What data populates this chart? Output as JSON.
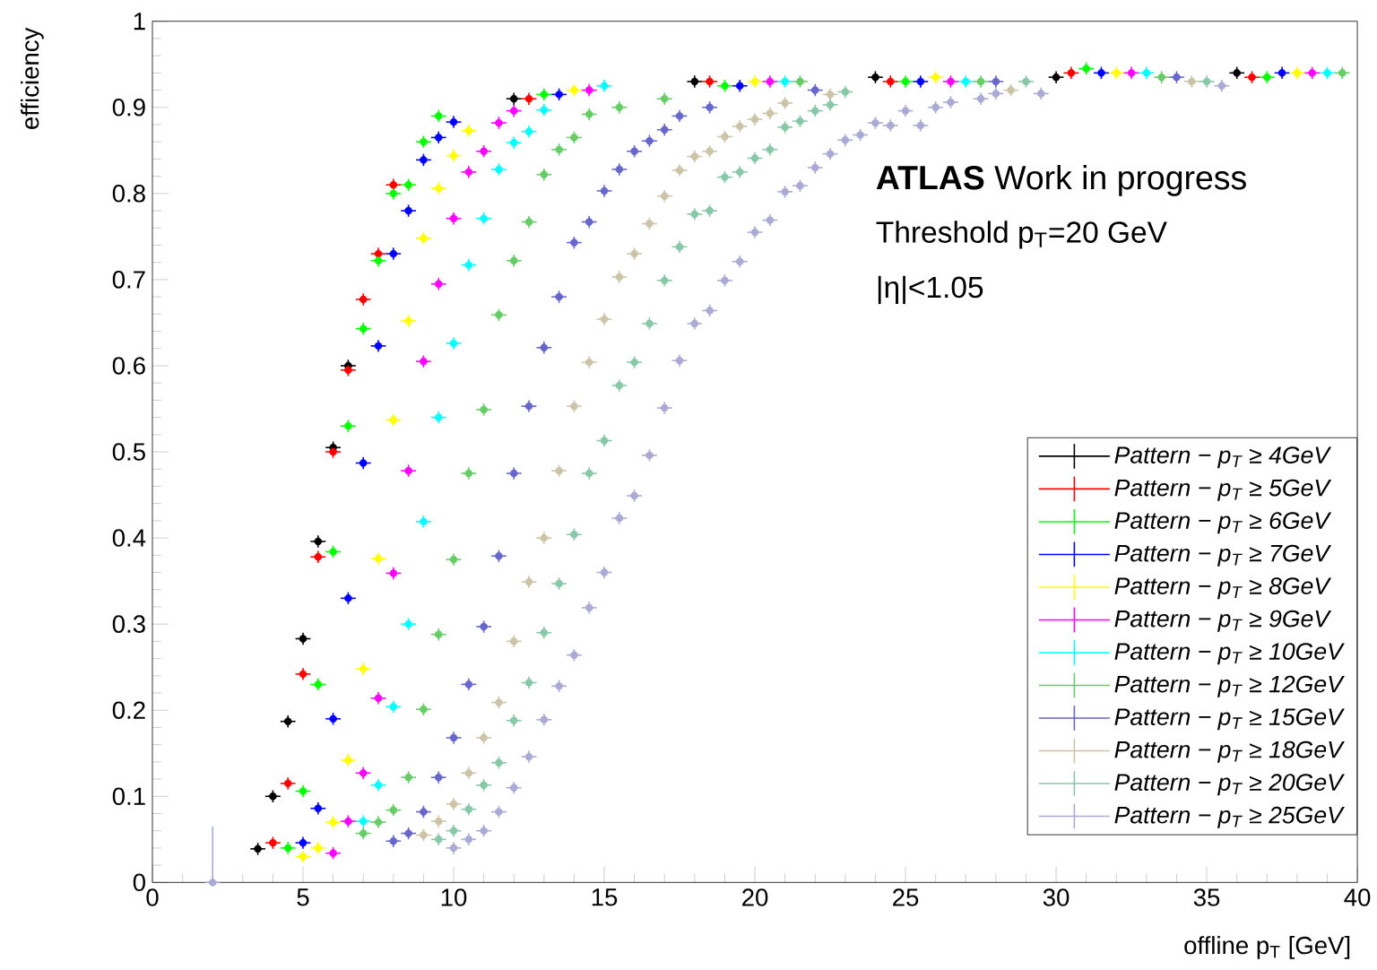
{
  "chart_data": {
    "type": "scatter",
    "xlabel": "offline p$_{T}$ [GeV]",
    "ylabel": "efficiency",
    "annotations": [
      "**ATLAS** Work in progress",
      "Threshold p$_{T}$=20 GeV",
      "|η|<1.05"
    ],
    "xlim": [
      0,
      40
    ],
    "ylim": [
      0,
      1
    ],
    "xticks": [
      0,
      5,
      10,
      15,
      20,
      25,
      30,
      35,
      40
    ],
    "yticks": [
      0,
      0.1,
      0.2,
      0.3,
      0.4,
      0.5,
      0.6,
      0.7,
      0.8,
      0.9,
      1
    ],
    "legend": "bottom right",
    "series": [
      {
        "name": "Pattern − p$_{T}$ ≥ 4GeV",
        "color": "#000000",
        "x": [
          3.5,
          4,
          4.5,
          5,
          5.5,
          6,
          6.5,
          12,
          18,
          24,
          30,
          36
        ],
        "values": [
          0.039,
          0.1,
          0.187,
          0.283,
          0.396,
          0.505,
          0.6,
          0.91,
          0.93,
          0.935,
          0.935,
          0.94
        ],
        "errors": [
          0.007,
          0.007,
          0.007,
          0.007,
          0.007,
          0.007,
          0.007,
          0.007,
          0.007,
          0.007,
          0.007,
          0.007
        ],
        "xerrors": [
          0.25,
          0.25,
          0.25,
          0.25,
          0.25,
          0.25,
          0.25,
          0.25,
          0.25,
          0.25,
          0.25,
          0.25
        ]
      },
      {
        "name": "Pattern − p$_{T}$ ≥ 5GeV",
        "color": "#ff0000",
        "x": [
          4,
          4.5,
          5,
          5.5,
          6,
          6.5,
          7,
          7.5,
          8,
          12.5,
          18.5,
          24.5,
          30.5,
          36.5
        ],
        "values": [
          0.046,
          0.115,
          0.242,
          0.378,
          0.5,
          0.595,
          0.677,
          0.73,
          0.81,
          0.91,
          0.93,
          0.93,
          0.94,
          0.935
        ],
        "errors": [
          0.007,
          0.007,
          0.007,
          0.007,
          0.007,
          0.007,
          0.007,
          0.007,
          0.007,
          0.007,
          0.007,
          0.007,
          0.007,
          0.007
        ],
        "xerrors": [
          0.25,
          0.25,
          0.25,
          0.25,
          0.25,
          0.25,
          0.25,
          0.25,
          0.25,
          0.25,
          0.25,
          0.25,
          0.25,
          0.25
        ]
      },
      {
        "name": "Pattern − p$_{T}$ ≥ 6GeV",
        "color": "#00ff00",
        "x": [
          4.5,
          5,
          5.5,
          6,
          6.5,
          7,
          7.5,
          8,
          8.5,
          9,
          9.5,
          13,
          19,
          25,
          31,
          37
        ],
        "values": [
          0.04,
          0.106,
          0.23,
          0.384,
          0.53,
          0.643,
          0.722,
          0.8,
          0.81,
          0.86,
          0.89,
          0.915,
          0.925,
          0.93,
          0.945,
          0.935
        ],
        "errors": [
          0.007,
          0.007,
          0.007,
          0.007,
          0.007,
          0.007,
          0.007,
          0.007,
          0.007,
          0.007,
          0.007,
          0.007,
          0.007,
          0.007,
          0.007,
          0.007
        ],
        "xerrors": [
          0.25,
          0.25,
          0.25,
          0.25,
          0.25,
          0.25,
          0.25,
          0.25,
          0.25,
          0.25,
          0.25,
          0.25,
          0.25,
          0.25,
          0.25,
          0.25
        ]
      },
      {
        "name": "Pattern − p$_{T}$ ≥ 7GeV",
        "color": "#0000ff",
        "x": [
          5,
          5.5,
          6,
          6.5,
          7,
          7.5,
          8,
          8.5,
          9,
          9.5,
          10,
          13.5,
          19.5,
          25.5,
          31.5,
          37.5
        ],
        "values": [
          0.046,
          0.086,
          0.19,
          0.33,
          0.487,
          0.623,
          0.73,
          0.78,
          0.839,
          0.865,
          0.883,
          0.915,
          0.925,
          0.93,
          0.94,
          0.94
        ],
        "errors": [
          0.007,
          0.007,
          0.007,
          0.007,
          0.007,
          0.007,
          0.007,
          0.007,
          0.007,
          0.007,
          0.007,
          0.007,
          0.007,
          0.007,
          0.007,
          0.007
        ],
        "xerrors": [
          0.25,
          0.25,
          0.25,
          0.25,
          0.25,
          0.25,
          0.25,
          0.25,
          0.25,
          0.25,
          0.25,
          0.25,
          0.25,
          0.25,
          0.25,
          0.25
        ]
      },
      {
        "name": "Pattern − p$_{T}$ ≥ 8GeV",
        "color": "#ffff00",
        "x": [
          5,
          5.5,
          6,
          6.5,
          7,
          7.5,
          8,
          8.5,
          9,
          9.5,
          10,
          10.5,
          14,
          20,
          26,
          32,
          38
        ],
        "values": [
          0.03,
          0.04,
          0.07,
          0.142,
          0.248,
          0.376,
          0.537,
          0.652,
          0.748,
          0.806,
          0.844,
          0.873,
          0.92,
          0.93,
          0.935,
          0.94,
          0.94
        ],
        "errors": [
          0.007,
          0.007,
          0.007,
          0.007,
          0.007,
          0.007,
          0.007,
          0.007,
          0.007,
          0.007,
          0.007,
          0.007,
          0.007,
          0.007,
          0.007,
          0.007,
          0.007
        ],
        "xerrors": [
          0.25,
          0.25,
          0.25,
          0.25,
          0.25,
          0.25,
          0.25,
          0.25,
          0.25,
          0.25,
          0.25,
          0.25,
          0.25,
          0.25,
          0.25,
          0.25,
          0.25
        ]
      },
      {
        "name": "Pattern − p$_{T}$ ≥ 9GeV",
        "color": "#ff00ff",
        "x": [
          6,
          6.5,
          7,
          7.5,
          8,
          8.5,
          9,
          9.5,
          10,
          10.5,
          11,
          11.5,
          12,
          14.5,
          20.5,
          26.5,
          32.5,
          38.5
        ],
        "values": [
          0.034,
          0.071,
          0.127,
          0.214,
          0.359,
          0.478,
          0.605,
          0.695,
          0.771,
          0.825,
          0.849,
          0.882,
          0.896,
          0.92,
          0.93,
          0.93,
          0.94,
          0.94
        ],
        "errors": [
          0.007,
          0.007,
          0.007,
          0.007,
          0.007,
          0.007,
          0.007,
          0.007,
          0.007,
          0.007,
          0.007,
          0.007,
          0.007,
          0.007,
          0.007,
          0.007,
          0.007,
          0.007
        ],
        "xerrors": [
          0.25,
          0.25,
          0.25,
          0.25,
          0.25,
          0.25,
          0.25,
          0.25,
          0.25,
          0.25,
          0.25,
          0.25,
          0.25,
          0.25,
          0.25,
          0.25,
          0.25,
          0.25
        ]
      },
      {
        "name": "Pattern − p$_{T}$ ≥ 10GeV",
        "color": "#00ffff",
        "x": [
          7,
          7.5,
          8,
          8.5,
          9,
          9.5,
          10,
          10.5,
          11,
          11.5,
          12,
          12.5,
          13,
          15,
          21,
          27,
          33,
          39
        ],
        "values": [
          0.071,
          0.113,
          0.204,
          0.3,
          0.419,
          0.54,
          0.626,
          0.717,
          0.771,
          0.828,
          0.859,
          0.872,
          0.897,
          0.925,
          0.93,
          0.93,
          0.94,
          0.94
        ],
        "errors": [
          0.007,
          0.007,
          0.007,
          0.007,
          0.007,
          0.007,
          0.007,
          0.007,
          0.007,
          0.007,
          0.007,
          0.007,
          0.007,
          0.007,
          0.007,
          0.007,
          0.007,
          0.007
        ],
        "xerrors": [
          0.25,
          0.25,
          0.25,
          0.25,
          0.25,
          0.25,
          0.25,
          0.25,
          0.25,
          0.25,
          0.25,
          0.25,
          0.25,
          0.25,
          0.25,
          0.25,
          0.25,
          0.25
        ]
      },
      {
        "name": "Pattern − p$_{T}$ ≥ 12GeV",
        "color": "#66cc66",
        "x": [
          7,
          7.5,
          8,
          8.5,
          9,
          9.5,
          10,
          10.5,
          11,
          11.5,
          12,
          12.5,
          13,
          13.5,
          14,
          14.5,
          15.5,
          17,
          21.5,
          27.5,
          33.5,
          39.5
        ],
        "values": [
          0.057,
          0.07,
          0.084,
          0.122,
          0.201,
          0.288,
          0.375,
          0.475,
          0.549,
          0.659,
          0.722,
          0.767,
          0.822,
          0.851,
          0.865,
          0.892,
          0.9,
          0.91,
          0.93,
          0.93,
          0.935,
          0.94
        ],
        "errors": [
          0.007,
          0.007,
          0.007,
          0.007,
          0.007,
          0.007,
          0.007,
          0.007,
          0.007,
          0.007,
          0.007,
          0.007,
          0.007,
          0.007,
          0.007,
          0.007,
          0.007,
          0.007,
          0.007,
          0.007,
          0.007,
          0.007
        ],
        "xerrors": [
          0.25,
          0.25,
          0.25,
          0.25,
          0.25,
          0.25,
          0.25,
          0.25,
          0.25,
          0.25,
          0.25,
          0.25,
          0.25,
          0.25,
          0.25,
          0.25,
          0.25,
          0.25,
          0.25,
          0.25,
          0.25,
          0.25
        ]
      },
      {
        "name": "Pattern − p$_{T}$ ≥ 15GeV",
        "color": "#6666cc",
        "x": [
          8,
          8.5,
          9,
          9.5,
          10,
          10.5,
          11,
          11.5,
          12,
          12.5,
          13,
          13.5,
          14,
          14.5,
          15,
          15.5,
          16,
          16.5,
          17,
          17.5,
          18.5,
          22,
          28,
          34
        ],
        "values": [
          0.048,
          0.057,
          0.082,
          0.122,
          0.168,
          0.23,
          0.297,
          0.379,
          0.475,
          0.553,
          0.621,
          0.68,
          0.743,
          0.767,
          0.803,
          0.828,
          0.849,
          0.861,
          0.874,
          0.89,
          0.9,
          0.92,
          0.93,
          0.935
        ],
        "errors": [
          0.007,
          0.007,
          0.007,
          0.007,
          0.007,
          0.007,
          0.007,
          0.007,
          0.007,
          0.007,
          0.007,
          0.007,
          0.007,
          0.007,
          0.007,
          0.007,
          0.007,
          0.007,
          0.007,
          0.007,
          0.007,
          0.007,
          0.007,
          0.007
        ],
        "xerrors": [
          0.25,
          0.25,
          0.25,
          0.25,
          0.25,
          0.25,
          0.25,
          0.25,
          0.25,
          0.25,
          0.25,
          0.25,
          0.25,
          0.25,
          0.25,
          0.25,
          0.25,
          0.25,
          0.25,
          0.25,
          0.25,
          0.25,
          0.25,
          0.25
        ]
      },
      {
        "name": "Pattern − p$_{T}$ ≥ 18GeV",
        "color": "#ccc4a8",
        "x": [
          9,
          9.5,
          10,
          10.5,
          11,
          11.5,
          12,
          12.5,
          13,
          13.5,
          14,
          14.5,
          15,
          15.5,
          16,
          16.5,
          17,
          17.5,
          18,
          18.5,
          19,
          19.5,
          20,
          20.5,
          21,
          22.5,
          28.5,
          34.5
        ],
        "values": [
          0.055,
          0.071,
          0.091,
          0.127,
          0.168,
          0.209,
          0.28,
          0.349,
          0.4,
          0.478,
          0.553,
          0.604,
          0.654,
          0.703,
          0.73,
          0.765,
          0.797,
          0.827,
          0.843,
          0.849,
          0.866,
          0.878,
          0.886,
          0.893,
          0.905,
          0.915,
          0.92,
          0.93
        ],
        "errors": [
          0.007,
          0.007,
          0.007,
          0.007,
          0.007,
          0.007,
          0.007,
          0.007,
          0.007,
          0.007,
          0.007,
          0.007,
          0.007,
          0.007,
          0.007,
          0.007,
          0.007,
          0.007,
          0.007,
          0.007,
          0.007,
          0.007,
          0.007,
          0.007,
          0.007,
          0.007,
          0.007,
          0.007
        ],
        "xerrors": [
          0.25,
          0.25,
          0.25,
          0.25,
          0.25,
          0.25,
          0.25,
          0.25,
          0.25,
          0.25,
          0.25,
          0.25,
          0.25,
          0.25,
          0.25,
          0.25,
          0.25,
          0.25,
          0.25,
          0.25,
          0.25,
          0.25,
          0.25,
          0.25,
          0.25,
          0.25,
          0.25,
          0.25
        ]
      },
      {
        "name": "Pattern − p$_{T}$ ≥ 20GeV",
        "color": "#88c8a8",
        "x": [
          9.5,
          10,
          10.5,
          11,
          11.5,
          12,
          12.5,
          13,
          13.5,
          14,
          14.5,
          15,
          15.5,
          16,
          16.5,
          17,
          17.5,
          18,
          18.5,
          19,
          19.5,
          20,
          20.5,
          21,
          21.5,
          22,
          22.5,
          23,
          29,
          35
        ],
        "values": [
          0.05,
          0.06,
          0.085,
          0.113,
          0.139,
          0.188,
          0.232,
          0.29,
          0.347,
          0.404,
          0.475,
          0.513,
          0.577,
          0.604,
          0.649,
          0.699,
          0.738,
          0.776,
          0.78,
          0.819,
          0.825,
          0.841,
          0.851,
          0.877,
          0.884,
          0.896,
          0.903,
          0.918,
          0.93,
          0.93
        ],
        "errors": [
          0.007,
          0.007,
          0.007,
          0.007,
          0.007,
          0.007,
          0.007,
          0.007,
          0.007,
          0.007,
          0.007,
          0.007,
          0.007,
          0.007,
          0.007,
          0.007,
          0.007,
          0.007,
          0.007,
          0.007,
          0.007,
          0.007,
          0.007,
          0.007,
          0.007,
          0.007,
          0.007,
          0.007,
          0.007,
          0.007
        ],
        "xerrors": [
          0.25,
          0.25,
          0.25,
          0.25,
          0.25,
          0.25,
          0.25,
          0.25,
          0.25,
          0.25,
          0.25,
          0.25,
          0.25,
          0.25,
          0.25,
          0.25,
          0.25,
          0.25,
          0.25,
          0.25,
          0.25,
          0.25,
          0.25,
          0.25,
          0.25,
          0.25,
          0.25,
          0.25,
          0.25,
          0.25
        ]
      },
      {
        "name": "Pattern − p$_{T}$ ≥ 25GeV",
        "color": "#aaaad4",
        "x": [
          2,
          10,
          10.5,
          11,
          11.5,
          12,
          12.5,
          13,
          13.5,
          14,
          14.5,
          15,
          15.5,
          16,
          16.5,
          17,
          17.5,
          18,
          18.5,
          19,
          19.5,
          20,
          20.5,
          21,
          21.5,
          22,
          22.5,
          23,
          23.5,
          24,
          24.5,
          25,
          25.5,
          26,
          26.5,
          27.5,
          28,
          29.5,
          35.5
        ],
        "values": [
          0,
          0.04,
          0.05,
          0.06,
          0.082,
          0.11,
          0.146,
          0.189,
          0.228,
          0.264,
          0.319,
          0.36,
          0.423,
          0.449,
          0.496,
          0.551,
          0.606,
          0.649,
          0.664,
          0.699,
          0.721,
          0.755,
          0.769,
          0.802,
          0.809,
          0.83,
          0.846,
          0.862,
          0.868,
          0.882,
          0.879,
          0.896,
          0.879,
          0.9,
          0.906,
          0.91,
          0.916,
          0.916,
          0.925
        ],
        "errors": [
          [
            0,
            0.065
          ],
          0.007,
          0.007,
          0.007,
          0.007,
          0.007,
          0.007,
          0.007,
          0.007,
          0.007,
          0.007,
          0.007,
          0.007,
          0.007,
          0.007,
          0.007,
          0.007,
          0.007,
          0.007,
          0.007,
          0.007,
          0.007,
          0.007,
          0.007,
          0.007,
          0.007,
          0.007,
          0.007,
          0.007,
          0.007,
          0.007,
          0.007,
          0.007,
          0.007,
          0.007,
          0.007,
          0.007,
          0.007,
          0.007
        ],
        "xerrors": [
          0.25,
          0.25,
          0.25,
          0.25,
          0.25,
          0.25,
          0.25,
          0.25,
          0.25,
          0.25,
          0.25,
          0.25,
          0.25,
          0.25,
          0.25,
          0.25,
          0.25,
          0.25,
          0.25,
          0.25,
          0.25,
          0.25,
          0.25,
          0.25,
          0.25,
          0.25,
          0.25,
          0.25,
          0.25,
          0.25,
          0.25,
          0.25,
          0.25,
          0.25,
          0.25,
          0.25,
          0.25,
          0.25,
          0.25
        ]
      }
    ]
  }
}
